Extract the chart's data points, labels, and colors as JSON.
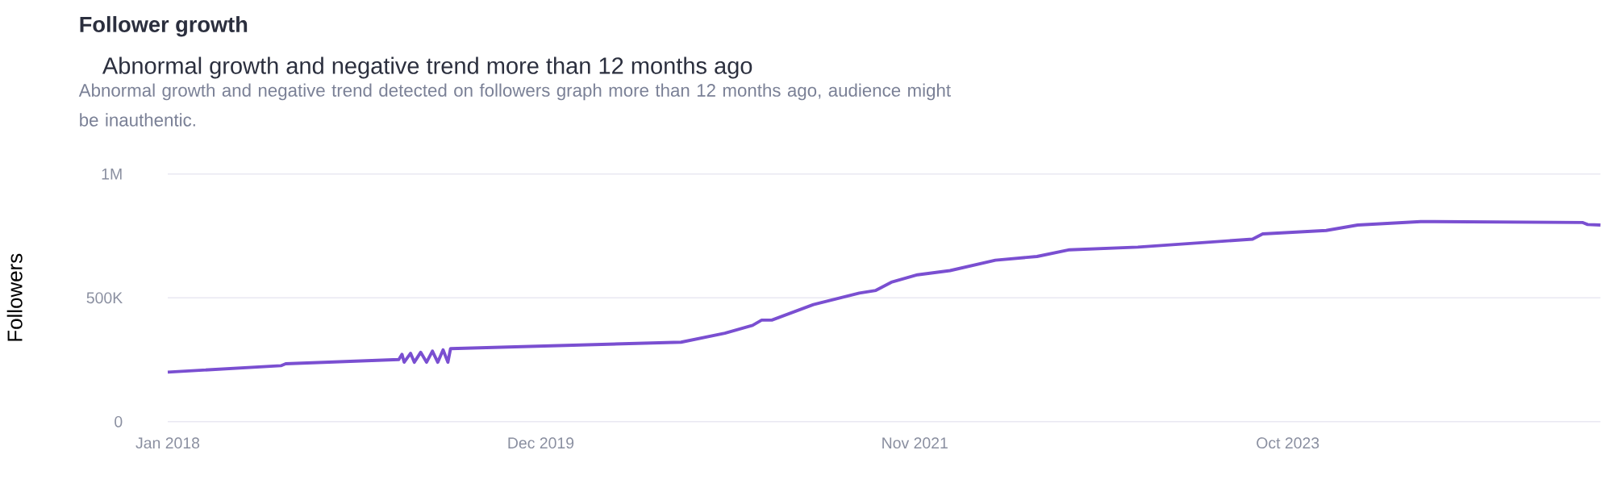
{
  "chart_data": {
    "type": "line",
    "title": "Follower growth",
    "subtitle": "Abnormal growth and negative trend more than 12 months ago",
    "annotations": [
      "Abnormal growth and negative trend detected on followers graph more than 12 months ago, audience might be inauthentic."
    ],
    "ylabel": "Followers",
    "color": "#7a4fd1",
    "grid": "y",
    "x": [
      "2018-01-01",
      "2018-08-01",
      "2018-08-10",
      "2019-03-10",
      "2019-03-16",
      "2019-03-20",
      "2019-04-01",
      "2019-04-08",
      "2019-04-20",
      "2019-05-01",
      "2019-05-12",
      "2019-05-22",
      "2019-06-01",
      "2019-06-10",
      "2019-06-15",
      "2020-08-20",
      "2020-11-10",
      "2021-01-01",
      "2021-01-18",
      "2021-02-06",
      "2021-04-25",
      "2021-07-20",
      "2021-08-20",
      "2021-09-18",
      "2021-11-06",
      "2022-01-06",
      "2022-04-01",
      "2022-06-18",
      "2022-08-18",
      "2022-12-24",
      "2023-07-27",
      "2023-08-15",
      "2023-12-12",
      "2024-02-09",
      "2024-06-06",
      "2025-04-06",
      "2025-04-15",
      "2025-05-09"
    ],
    "values": [
      200000,
      226000,
      234000,
      251000,
      272000,
      240000,
      276000,
      240000,
      280000,
      240000,
      285000,
      240000,
      290000,
      240000,
      295000,
      321000,
      357000,
      389000,
      410000,
      410000,
      473000,
      519000,
      530000,
      563000,
      593000,
      610000,
      652000,
      667000,
      694000,
      705000,
      737000,
      758000,
      772000,
      794000,
      808000,
      804000,
      796000,
      794000
    ],
    "xlim": [
      "2018-01-01",
      "2025-05-09"
    ],
    "ylim": [
      0,
      1000000
    ],
    "xticks": [
      {
        "value": "2018-01-01",
        "label": "Jan 2018"
      },
      {
        "value": "2019-12-01",
        "label": "Dec 2019"
      },
      {
        "value": "2021-11-01",
        "label": "Nov 2021"
      },
      {
        "value": "2023-10-01",
        "label": "Oct 2023"
      }
    ],
    "yticks": [
      0,
      {
        "value": 500000,
        "label": "500K"
      },
      {
        "value": 1000000,
        "label": "1M"
      }
    ]
  }
}
